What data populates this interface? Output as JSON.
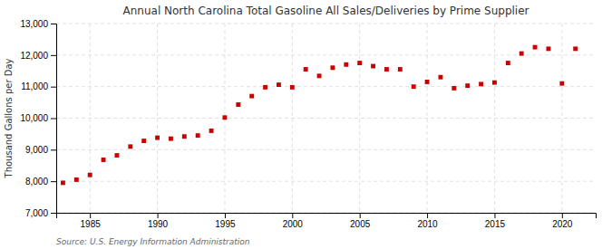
{
  "chart_data": {
    "type": "scatter",
    "title": "Annual North Carolina Total Gasoline All Sales/Deliveries by Prime Supplier",
    "ylabel": "Thousand Gallons per Day",
    "source": "Source: U.S. Energy Information Administration",
    "x": [
      1983,
      1984,
      1985,
      1986,
      1987,
      1988,
      1989,
      1990,
      1991,
      1992,
      1993,
      1994,
      1995,
      1996,
      1997,
      1998,
      1999,
      2000,
      2001,
      2002,
      2003,
      2004,
      2005,
      2006,
      2007,
      2008,
      2009,
      2010,
      2011,
      2012,
      2013,
      2014,
      2015,
      2016,
      2017,
      2018,
      2019,
      2020,
      2021
    ],
    "values": [
      7950,
      8050,
      8200,
      8680,
      8820,
      9100,
      9280,
      9380,
      9350,
      9420,
      9450,
      9600,
      10020,
      10430,
      10700,
      10980,
      11060,
      10980,
      11550,
      11340,
      11600,
      11700,
      11750,
      11650,
      11550,
      11550,
      11000,
      11150,
      11300,
      10950,
      11030,
      11080,
      11130,
      11750,
      12050,
      12250,
      12200,
      11100,
      12200
    ],
    "color": "#cc0000",
    "marker": "square",
    "grid": true,
    "xlim": [
      1982.5,
      2022.5
    ],
    "xticks": [
      1985,
      1990,
      1995,
      2000,
      2005,
      2010,
      2015,
      2020
    ],
    "ylim": [
      7000,
      13000
    ],
    "yticks": [
      {
        "value": 7000,
        "label": "7,000"
      },
      {
        "value": 8000,
        "label": "8,000"
      },
      {
        "value": 9000,
        "label": "9,000"
      },
      {
        "value": 10000,
        "label": "10,000"
      },
      {
        "value": 11000,
        "label": "11,000"
      },
      {
        "value": 12000,
        "label": "12,000"
      },
      {
        "value": 13000,
        "label": "13,000"
      }
    ]
  }
}
